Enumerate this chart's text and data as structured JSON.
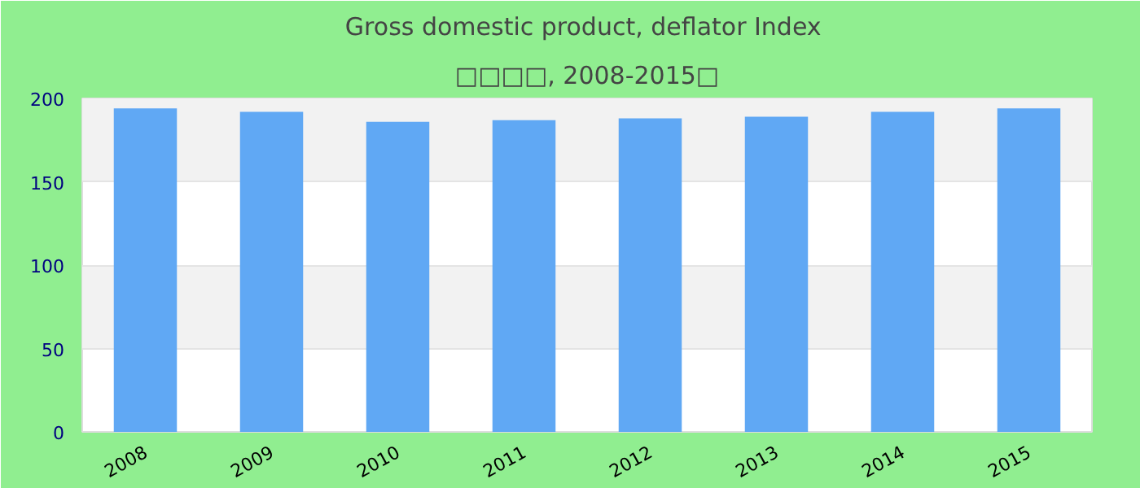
{
  "chart_data": {
    "type": "bar",
    "title": "Gross domestic product, deflator  Index",
    "subtitle": "□□□□, 2008-2015□",
    "categories": [
      "2008",
      "2009",
      "2010",
      "2011",
      "2012",
      "2013",
      "2014",
      "2015"
    ],
    "values": [
      194,
      192,
      186,
      187,
      188,
      189,
      192,
      194
    ],
    "color": "#60a8f4",
    "ylim": [
      0,
      200
    ],
    "yticks": [
      0,
      50,
      100,
      150,
      200
    ],
    "grid": "y"
  }
}
